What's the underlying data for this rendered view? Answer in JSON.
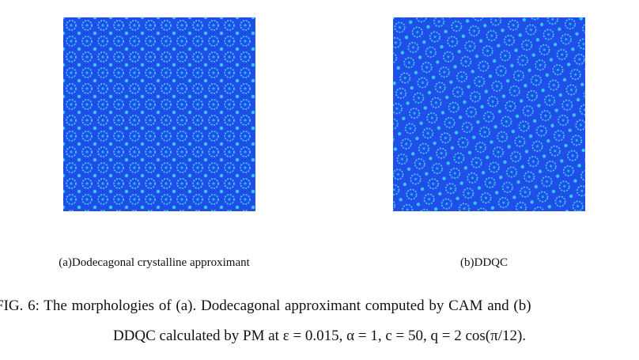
{
  "figure": {
    "subfigures": [
      {
        "label": "(a)Dodecagonal crystalline approximant"
      },
      {
        "label": "(b)DDQC"
      }
    ],
    "caption": {
      "lines": [
        "FIG. 6:  The morphologies of (a). Dodecagonal approximant computed by CAM and (b)",
        "DDQC calculated by PM at ε = 0.015, α = 1, c = 50, q = 2 cos(π/12)."
      ]
    }
  }
}
